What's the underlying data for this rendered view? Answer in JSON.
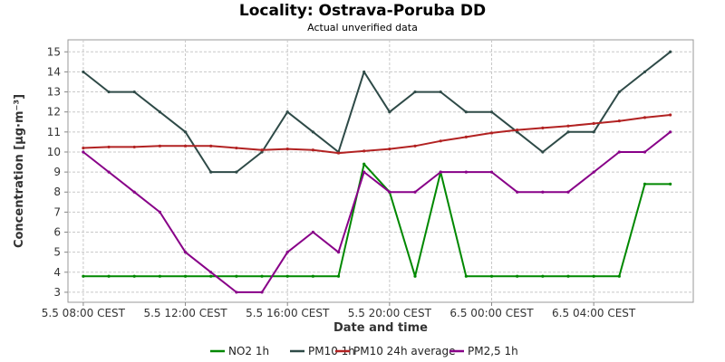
{
  "chart_data": {
    "type": "line",
    "title": "Locality: Ostrava-Poruba DD",
    "subtitle": "Actual unverified data",
    "xlabel": "Date and time",
    "ylabel": "Concentration [µg·m⁻³]",
    "ylim": [
      2.5,
      15.6
    ],
    "y_ticks": [
      3,
      4,
      5,
      6,
      7,
      8,
      9,
      10,
      11,
      12,
      13,
      14,
      15
    ],
    "x_ticks": [
      {
        "hour": 0,
        "label": "5.5 08:00 CEST"
      },
      {
        "hour": 4,
        "label": "5.5 12:00 CEST"
      },
      {
        "hour": 8,
        "label": "5.5 16:00 CEST"
      },
      {
        "hour": 12,
        "label": "5.5 20:00 CEST"
      },
      {
        "hour": 16,
        "label": "6.5 00:00 CEST"
      },
      {
        "hour": 20,
        "label": "6.5 04:00 CEST"
      }
    ],
    "xlim": [
      -0.6,
      23.9
    ],
    "x_hours": [
      0,
      1,
      2,
      3,
      4,
      5,
      6,
      7,
      8,
      9,
      10,
      11,
      12,
      13,
      14,
      15,
      16,
      17,
      18,
      19,
      20,
      21,
      22,
      23
    ],
    "grid": true,
    "legend_position": "bottom",
    "series": [
      {
        "name": "NO2 1h",
        "color": "#008800",
        "values": [
          3.8,
          3.8,
          3.8,
          3.8,
          3.8,
          3.8,
          3.8,
          3.8,
          3.8,
          3.8,
          3.8,
          9.4,
          8.0,
          3.8,
          9.0,
          3.8,
          3.8,
          3.8,
          3.8,
          3.8,
          3.8,
          3.8,
          8.4,
          8.4
        ]
      },
      {
        "name": "PM10 1h",
        "color": "#2e4a47",
        "values": [
          14,
          13,
          13,
          12,
          11,
          9,
          9,
          10,
          12,
          11,
          10,
          14,
          12,
          13,
          13,
          12,
          12,
          11,
          10,
          11,
          11,
          13,
          14,
          15
        ]
      },
      {
        "name": "PM10 24h average",
        "color": "#b22222",
        "values": [
          10.2,
          10.25,
          10.25,
          10.3,
          10.3,
          10.3,
          10.2,
          10.1,
          10.15,
          10.1,
          9.95,
          10.05,
          10.15,
          10.3,
          10.55,
          10.75,
          10.95,
          11.1,
          11.2,
          11.3,
          11.42,
          11.55,
          11.72,
          11.85
        ]
      },
      {
        "name": "PM2,5 1h",
        "color": "#880088",
        "values": [
          10,
          9,
          8,
          7,
          5,
          4,
          3,
          3,
          5,
          6,
          5,
          9,
          8,
          8,
          9,
          9,
          9,
          8,
          8,
          8,
          9,
          10,
          10,
          11
        ]
      }
    ]
  }
}
